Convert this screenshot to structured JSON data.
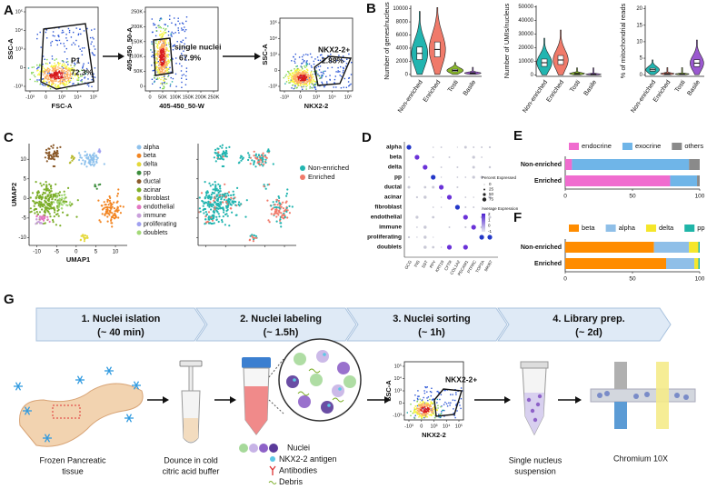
{
  "figure": {
    "A": {
      "label": "A",
      "plots": [
        {
          "y_label": "SSC-A",
          "x_label": "FSC-A",
          "gate": "P1",
          "percent": "72.3%",
          "y_ticks": [
            "10⁵",
            "10⁴",
            "10³",
            "0",
            "-10³"
          ],
          "x_ticks": [
            "-10³",
            "0",
            "10³",
            "10⁴",
            "10⁵"
          ]
        },
        {
          "y_label": "405-450_50-A",
          "x_label": "405-450_50-W",
          "gate": "single nuclei",
          "percent": "67.9%",
          "y_ticks": [
            "250K",
            "200K",
            "150K",
            "100K",
            "50K",
            "0"
          ],
          "x_ticks": [
            "0",
            "50K",
            "100K",
            "150K",
            "200K",
            "250K"
          ]
        },
        {
          "y_label": "SSC-A",
          "x_label": "NKX2-2",
          "gate": "NKX2-2+",
          "percent": "2.88%",
          "y_ticks": [
            "10⁵",
            "10⁴",
            "10³",
            "0",
            "-10³"
          ],
          "x_ticks": [
            "-10³",
            "0",
            "10³",
            "10⁴",
            "10⁵"
          ]
        }
      ]
    },
    "B": {
      "label": "B"
    },
    "C": {
      "label": "C",
      "x_label": "UMAP1",
      "y_label": "UMAP2",
      "xlim": [
        -12,
        13
      ],
      "ylim": [
        -12,
        14
      ],
      "x_ticks": [
        -10,
        -5,
        0,
        5,
        10
      ],
      "y_ticks": [
        -10,
        -5,
        0,
        5,
        10
      ],
      "cell_types": [
        "alpha",
        "beta",
        "delta",
        "pp",
        "ductal",
        "acinar",
        "fibroblast",
        "endothelial",
        "immune",
        "proliferating",
        "doublets"
      ],
      "colors": [
        "#8ec1ec",
        "#f28522",
        "#e4d83a",
        "#3c8d3c",
        "#8b5a2b",
        "#7cae29",
        "#b5b82a",
        "#e377c2",
        "#c9a0dc",
        "#a0a0f0",
        "#a3d977"
      ],
      "groups": [
        "Non-enriched",
        "Enriched"
      ],
      "group_colors": [
        "#22b5b0",
        "#f07a6a"
      ]
    },
    "D": {
      "label": "D",
      "rows": [
        "alpha",
        "beta",
        "delta",
        "pp",
        "ductal",
        "acinar",
        "fibroblast",
        "endothelial",
        "immune",
        "proliferating",
        "doublets"
      ],
      "genes": [
        "GCG",
        "INS",
        "SST",
        "PPY",
        "KRT19",
        "CFTR",
        "COL1A2",
        "PECAM1",
        "PTPRC",
        "TOP2A",
        "MKI67"
      ],
      "size_legend_title": "Percent Expressed",
      "size_legend": [
        "0",
        "25",
        "50",
        "75"
      ],
      "color_legend_title": "Average Expression",
      "color_legend": [
        "2",
        "1",
        "0",
        "-1"
      ]
    },
    "E": {
      "label": "E"
    },
    "F": {
      "label": "F"
    },
    "G": {
      "label": "G",
      "steps": [
        {
          "title": "1. Nuclei islation",
          "time": "(~ 40 min)"
        },
        {
          "title": "2. Nuclei labeling",
          "time": "(~ 1.5h)"
        },
        {
          "title": "3. Nuclei sorting",
          "time": "(~ 1h)"
        },
        {
          "title": "4. Library prep.",
          "time": "(~ 2d)"
        }
      ],
      "tissue": [
        "Frozen Pancreatic",
        "tissue"
      ],
      "dounce": [
        "Dounce in cold",
        "citric acid buffer"
      ],
      "legend": [
        "Nuclei",
        "NKX2-2 antigen",
        "Antibodies",
        "Debris"
      ],
      "sort_y_label": "SSC-A",
      "sort_x_label": "NKX2-2",
      "sort_gate": "NKX2-2+",
      "sort_y_ticks": [
        "10⁵",
        "10⁴",
        "10³",
        "0",
        "-10³"
      ],
      "sort_x_ticks": [
        "-10³",
        "0",
        "10³",
        "10⁴",
        "10⁵"
      ],
      "suspension": [
        "Single nucleus",
        "suspension"
      ],
      "chromium": "Chromium 10X"
    }
  },
  "chart_data": [
    {
      "type": "violin",
      "y_label": "Number of genes/nucleus",
      "categories": [
        "Non-enriched",
        "Enriched",
        "Tosti",
        "Basile"
      ],
      "values": [
        3200,
        3800,
        600,
        200
      ],
      "colors": [
        "#22b5b0",
        "#f07a6a",
        "#8ab82c",
        "#9b59d0"
      ],
      "ylim": [
        -300,
        10500
      ],
      "yticks": [
        0,
        2000,
        4000,
        6000,
        8000,
        10000
      ]
    },
    {
      "type": "violin",
      "y_label": "Number of UMIs/nucleus",
      "categories": [
        "Non-enriched",
        "Enriched",
        "Tosti",
        "Basile"
      ],
      "values": [
        9000,
        11000,
        1000,
        500
      ],
      "colors": [
        "#22b5b0",
        "#f07a6a",
        "#8ab82c",
        "#9b59d0"
      ],
      "ylim": [
        -1000,
        51000
      ],
      "yticks": [
        0,
        10000,
        20000,
        30000,
        40000,
        50000
      ]
    },
    {
      "type": "violin",
      "y_label": "% of mitochondrial reads",
      "categories": [
        "Non-enriched",
        "Enriched",
        "Tosti",
        "Basile"
      ],
      "values": [
        1.5,
        0.3,
        0.2,
        3.5
      ],
      "colors": [
        "#22b5b0",
        "#f07a6a",
        "#8ab82c",
        "#9b59d0"
      ],
      "ylim": [
        -0.5,
        21
      ],
      "yticks": [
        0,
        5,
        10,
        15,
        20
      ]
    },
    {
      "type": "stacked_bar_h",
      "categories": [
        "Non-enriched",
        "Enriched"
      ],
      "legend": "top",
      "xlim": [
        0,
        100
      ],
      "xticks": [
        0,
        50,
        100
      ],
      "series": [
        {
          "name": "endocrine",
          "color": "#f06ccf",
          "values": [
            5,
            78
          ]
        },
        {
          "name": "exocrine",
          "color": "#6fb5e8",
          "values": [
            87,
            20
          ]
        },
        {
          "name": "others",
          "color": "#8a8a8a",
          "values": [
            8,
            2
          ]
        }
      ]
    },
    {
      "type": "stacked_bar_h",
      "categories": [
        "Non-enriched",
        "Enriched"
      ],
      "legend": "top",
      "xlim": [
        0,
        100
      ],
      "xticks": [
        0,
        50,
        100
      ],
      "series": [
        {
          "name": "beta",
          "color": "#ff8c00",
          "values": [
            66,
            75
          ]
        },
        {
          "name": "alpha",
          "color": "#8fbfe8",
          "values": [
            26,
            21
          ]
        },
        {
          "name": "delta",
          "color": "#f5e62a",
          "values": [
            7,
            3
          ]
        },
        {
          "name": "pp",
          "color": "#1fb5a8",
          "values": [
            1,
            1
          ]
        }
      ]
    }
  ]
}
